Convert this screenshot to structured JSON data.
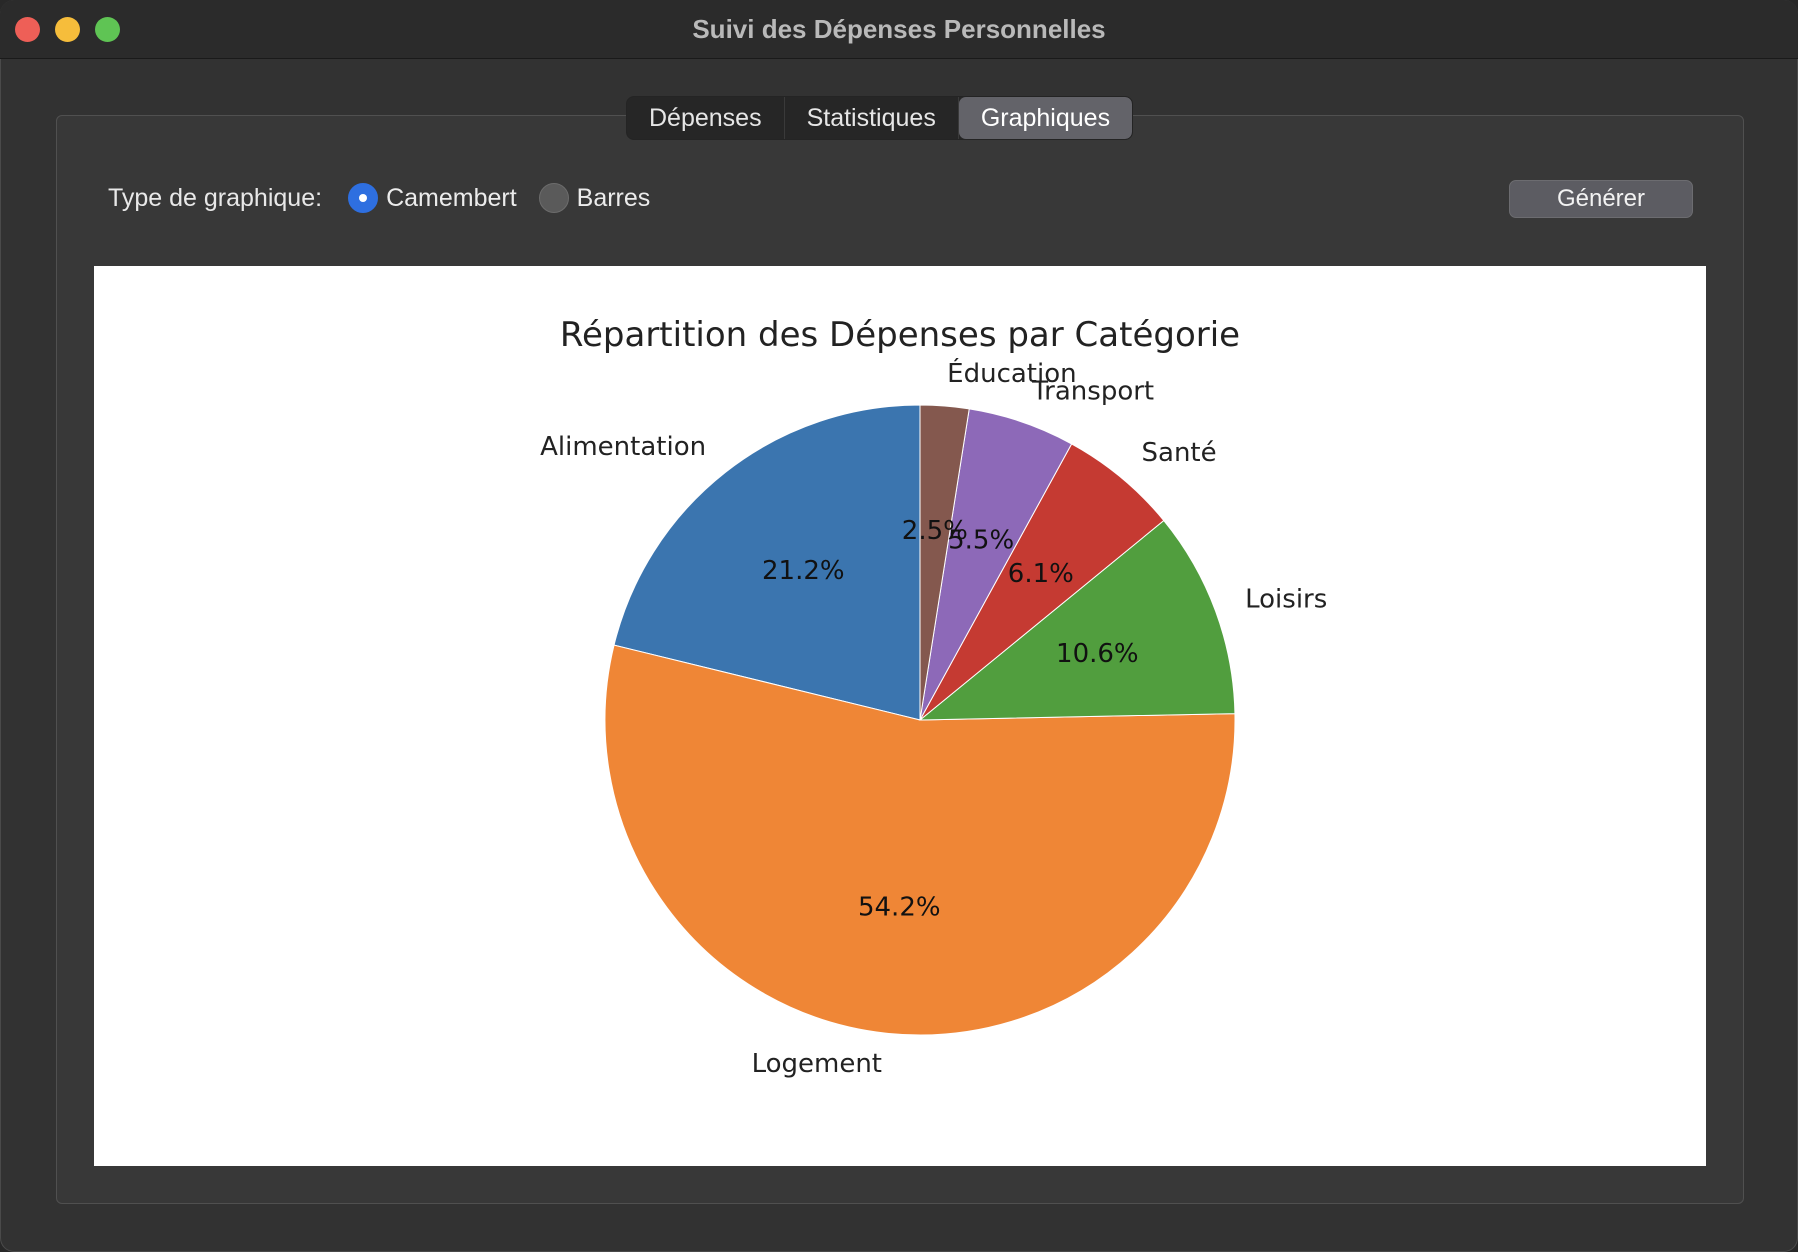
{
  "window": {
    "title": "Suivi des Dépenses Personnelles"
  },
  "tabs": [
    {
      "label": "Dépenses",
      "active": false
    },
    {
      "label": "Statistiques",
      "active": false
    },
    {
      "label": "Graphiques",
      "active": true
    }
  ],
  "controls": {
    "chart_type_label": "Type de graphique:",
    "options": [
      {
        "label": "Camembert",
        "selected": true
      },
      {
        "label": "Barres",
        "selected": false
      }
    ],
    "generate_label": "Générer"
  },
  "chart_data": {
    "type": "pie",
    "title": "Répartition des Dépenses par Catégorie",
    "slices": [
      {
        "label": "Alimentation",
        "percent": 21.2,
        "pct_label": "21.2%",
        "color": "#3b75af"
      },
      {
        "label": "Logement",
        "percent": 54.2,
        "pct_label": "54.2%",
        "color": "#ef8636"
      },
      {
        "label": "Loisirs",
        "percent": 10.6,
        "pct_label": "10.6%",
        "color": "#519e3e"
      },
      {
        "label": "Santé",
        "percent": 6.1,
        "pct_label": "6.1%",
        "color": "#c53a32"
      },
      {
        "label": "Transport",
        "percent": 5.5,
        "pct_label": "5.5%",
        "color": "#8d69b8"
      },
      {
        "label": "Éducation",
        "percent": 2.5,
        "pct_label": "2.5%",
        "color": "#84584e"
      }
    ]
  }
}
